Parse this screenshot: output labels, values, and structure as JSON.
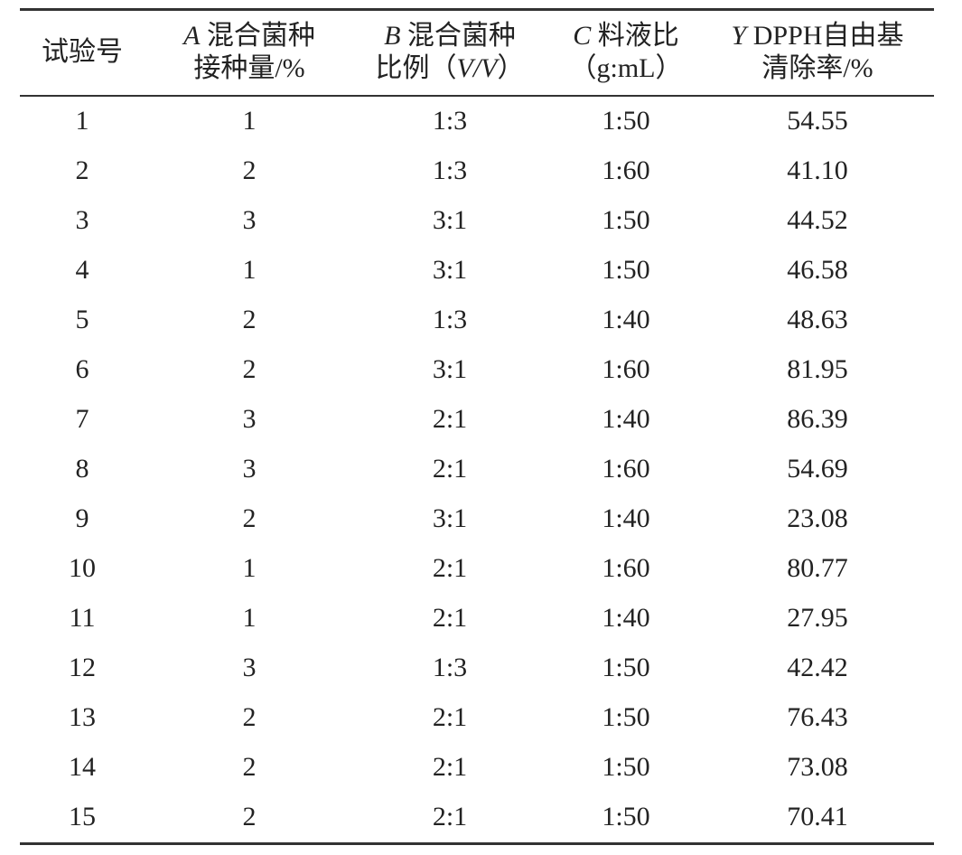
{
  "table": {
    "headers": [
      {
        "line1": "试验号",
        "line2": ""
      },
      {
        "var": "A",
        "line1": "混合菌种",
        "line2": "接种量/%"
      },
      {
        "var": "B",
        "line1": "混合菌种",
        "line2_pre": "比例（",
        "line2_it": "V/V",
        "line2_post": "）"
      },
      {
        "var": "C",
        "line1": "料液比",
        "line2": "（g:mL）"
      },
      {
        "var": "Y",
        "line1": "DPPH自由基",
        "line2": "清除率/%"
      }
    ],
    "rows": [
      [
        "1",
        "1",
        "1:3",
        "1:50",
        "54.55"
      ],
      [
        "2",
        "2",
        "1:3",
        "1:60",
        "41.10"
      ],
      [
        "3",
        "3",
        "3:1",
        "1:50",
        "44.52"
      ],
      [
        "4",
        "1",
        "3:1",
        "1:50",
        "46.58"
      ],
      [
        "5",
        "2",
        "1:3",
        "1:40",
        "48.63"
      ],
      [
        "6",
        "2",
        "3:1",
        "1:60",
        "81.95"
      ],
      [
        "7",
        "3",
        "2:1",
        "1:40",
        "86.39"
      ],
      [
        "8",
        "3",
        "2:1",
        "1:60",
        "54.69"
      ],
      [
        "9",
        "2",
        "3:1",
        "1:40",
        "23.08"
      ],
      [
        "10",
        "1",
        "2:1",
        "1:60",
        "80.77"
      ],
      [
        "11",
        "1",
        "2:1",
        "1:40",
        "27.95"
      ],
      [
        "12",
        "3",
        "1:3",
        "1:50",
        "42.42"
      ],
      [
        "13",
        "2",
        "2:1",
        "1:50",
        "76.43"
      ],
      [
        "14",
        "2",
        "2:1",
        "1:50",
        "73.08"
      ],
      [
        "15",
        "2",
        "2:1",
        "1:50",
        "70.41"
      ]
    ]
  }
}
